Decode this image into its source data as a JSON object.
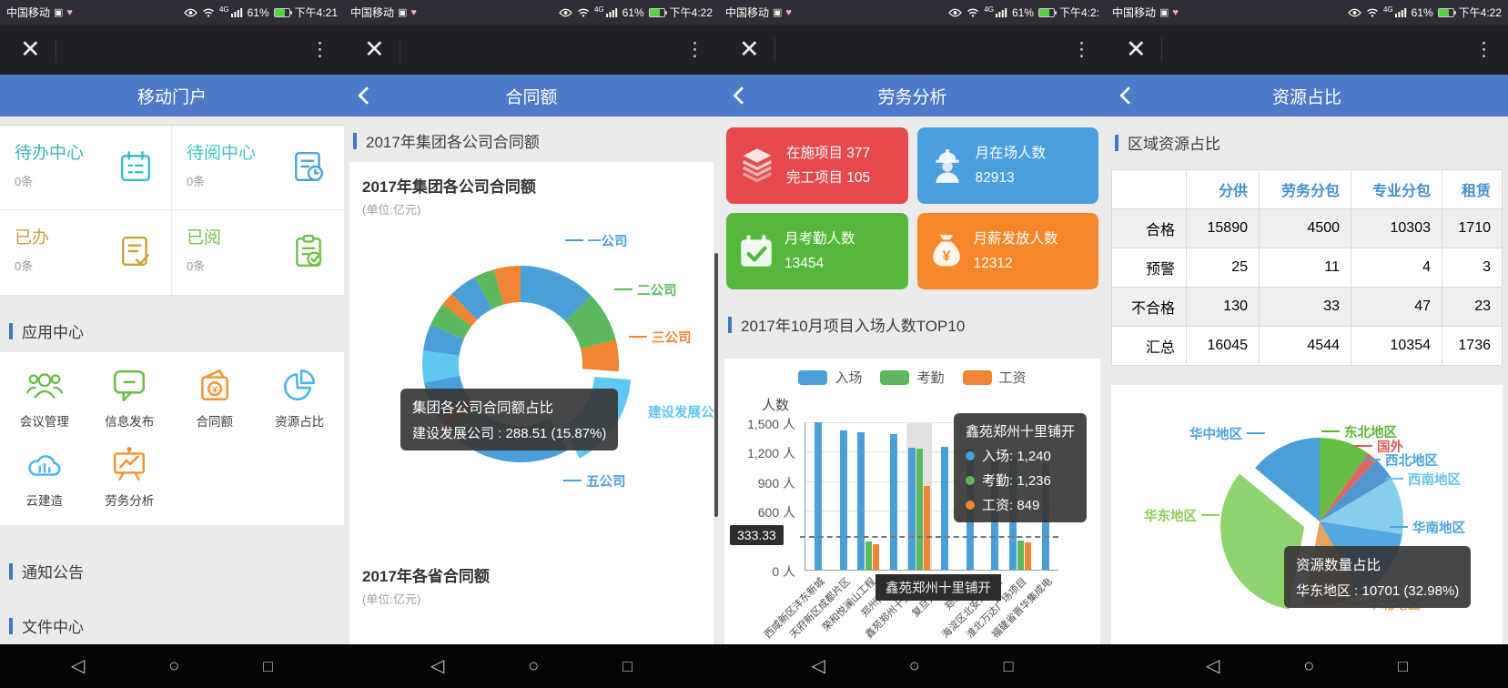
{
  "screen1": {
    "status": {
      "carrier": "中国移动",
      "signal": "4G",
      "battery": "61%",
      "time": "下午4:21"
    },
    "nav_title": "移动门户",
    "todo": [
      {
        "label": "待办中心",
        "count": "0条"
      },
      {
        "label": "待阅中心",
        "count": "0条"
      },
      {
        "label": "已办",
        "count": "0条"
      },
      {
        "label": "已阅",
        "count": "0条"
      }
    ],
    "app_section": "应用中心",
    "apps": [
      {
        "label": "会议管理"
      },
      {
        "label": "信息发布"
      },
      {
        "label": "合同额"
      },
      {
        "label": "资源占比"
      },
      {
        "label": "云建造"
      },
      {
        "label": "劳务分析"
      }
    ],
    "section_notice": "通知公告",
    "section_file": "文件中心"
  },
  "screen2": {
    "status": {
      "carrier": "中国移动",
      "signal": "4G",
      "battery": "61%",
      "time": "下午4:22"
    },
    "nav_title": "合同额",
    "section": "2017年集团各公司合同额",
    "bottom_title": "2017年各省合同额",
    "bottom_unit": "(单位:亿元)"
  },
  "screen3": {
    "status": {
      "carrier": "中国移动",
      "signal": "4G",
      "battery": "61%",
      "time": "下午4:2:"
    },
    "nav_title": "劳务分析",
    "cards": [
      {
        "line1": "在施项目 377",
        "line2": "完工项目 105",
        "color": "#e5494d"
      },
      {
        "line1": "月在场人数",
        "line2": "82913",
        "color": "#4aa0dc"
      },
      {
        "line1": "月考勤人数",
        "line2": "13454",
        "color": "#55b83b"
      },
      {
        "line1": "月薪发放人数",
        "line2": "12312",
        "color": "#f6882b"
      }
    ],
    "section": "2017年10月项目入场人数TOP10"
  },
  "screen4": {
    "status": {
      "carrier": "中国移动",
      "signal": "4G",
      "battery": "61%",
      "time": "下午4:22"
    },
    "nav_title": "资源占比",
    "section": "区域资源占比",
    "table": {
      "headers": [
        "",
        "分供",
        "劳务分包",
        "专业分包",
        "租赁"
      ],
      "rows": [
        {
          "label": "合格",
          "cells": [
            "15890",
            "4500",
            "10303",
            "1710"
          ]
        },
        {
          "label": "预警",
          "cells": [
            "25",
            "11",
            "4",
            "3"
          ]
        },
        {
          "label": "不合格",
          "cells": [
            "130",
            "33",
            "47",
            "23"
          ]
        },
        {
          "label": "汇总",
          "cells": [
            "16045",
            "4544",
            "10354",
            "1736"
          ]
        }
      ]
    }
  },
  "chart_data": [
    {
      "type": "pie",
      "subtype": "donut",
      "title": "2017年集团各公司合同额",
      "unit": "(单位:亿元)",
      "visible_labels": [
        "一公司",
        "二公司",
        "三公司",
        "建设发展公",
        "五公司"
      ],
      "tooltip": {
        "line1": "集团各公司合同额占比",
        "line2": "建设发展公司 : 288.51 (15.87%)"
      },
      "slices": [
        {
          "name": "一公司",
          "value": 232,
          "color": "#4a9fd8",
          "estimated": true
        },
        {
          "name": "二公司",
          "value": 150,
          "color": "#5cb85c",
          "estimated": true
        },
        {
          "name": "三公司",
          "value": 95,
          "color": "#ef8432",
          "estimated": true
        },
        {
          "name": "建设发展公司",
          "value": 288.51,
          "pct": "15.87%",
          "color": "#5ec7f2",
          "explode": true
        },
        {
          "name": "五公司",
          "value": 330,
          "color": "#4a9fd8",
          "estimated": true
        },
        {
          "value": 55,
          "color": "#5cb85c",
          "estimated": true
        },
        {
          "value": 48,
          "color": "#ef8432",
          "estimated": true
        },
        {
          "value": 110,
          "color": "#4a9fd8",
          "estimated": true
        },
        {
          "value": 95,
          "color": "#5ec7f2",
          "estimated": true
        },
        {
          "value": 80,
          "color": "#4a9fd8",
          "estimated": true
        },
        {
          "value": 70,
          "color": "#5cb85c",
          "estimated": true
        },
        {
          "value": 40,
          "color": "#ef8432",
          "estimated": true
        },
        {
          "value": 85,
          "color": "#4a9fd8",
          "estimated": true
        },
        {
          "value": 60,
          "color": "#5cb85c",
          "estimated": true
        },
        {
          "value": 80,
          "color": "#ef8432",
          "estimated": true
        }
      ]
    },
    {
      "type": "bar",
      "title": "2017年10月项目入场人数TOP10",
      "ylabel": "人数",
      "yticks": [
        "1,500 人",
        "1,200 人",
        "900 人",
        "600 人",
        "0 人"
      ],
      "ymax": 1500,
      "ref_line": 333.33,
      "ref_label": "333.33",
      "highlight_index": 4,
      "categories": [
        "西咸新区沣东新城",
        "天府新区成都片区",
        "荣和悦澜山工程",
        "郑州南岗刘",
        "鑫苑郑州十里铺开",
        "复旦大学附",
        "郑东新区",
        "海淀区北安河东区",
        "淮北万达广场项目",
        "福建省晋华集成电"
      ],
      "series": [
        {
          "name": "入场",
          "color": "#4a9fd8",
          "values": [
            1500,
            1420,
            1400,
            1380,
            1240,
            1250,
            1230,
            1180,
            1150,
            1080
          ]
        },
        {
          "name": "考勤",
          "color": "#5cb85c",
          "values": [
            null,
            null,
            290,
            null,
            1236,
            null,
            null,
            null,
            300,
            null
          ]
        },
        {
          "name": "工资",
          "color": "#ee8633",
          "values": [
            null,
            null,
            260,
            null,
            849,
            null,
            null,
            null,
            280,
            null
          ]
        }
      ],
      "tooltip": {
        "title": "鑫苑郑州十里铺开",
        "rows": [
          {
            "text": "入场: 1,240",
            "color": "#4a9fd8"
          },
          {
            "text": "考勤: 1,236",
            "color": "#5cb85c"
          },
          {
            "text": "工资: 849",
            "color": "#ee8633"
          }
        ]
      },
      "x_tooltip": "鑫苑郑州十里铺开"
    },
    {
      "type": "pie",
      "title": "资源数量占比",
      "tooltip": {
        "line1": "资源数量占比",
        "line2": "华东地区 : 10701 (32.98%)"
      },
      "slices": [
        {
          "name": "东北地区",
          "value": 3200,
          "color": "#68bd45",
          "label_color": "#5cb531",
          "estimated": true
        },
        {
          "name": "国外",
          "value": 650,
          "color": "#e06666",
          "label_color": "#e05c5c",
          "estimated": true
        },
        {
          "name": "西北地区",
          "value": 1460,
          "color": "#4f97d0",
          "label_color": "#4aa3dd",
          "estimated": true
        },
        {
          "name": "西南地区",
          "value": 3570,
          "color": "#87ceec",
          "label_color": "#66c3ea",
          "estimated": true
        },
        {
          "name": "华南地区",
          "value": 4700,
          "color": "#54a8e0",
          "label_color": "#4aa3dd",
          "estimated": true
        },
        {
          "name": "华北地区",
          "value": 3570,
          "color": "#e8a15d",
          "label_color": "#eda155",
          "estimated": true
        },
        {
          "name": "华东地区",
          "value": 10701,
          "pct": "32.98%",
          "color": "#8ed36e",
          "label_color": "#8ccf56",
          "explode": true
        },
        {
          "name": "华中地区",
          "value": 4540,
          "color": "#4a9fd8",
          "label_color": "#4aa3dd",
          "estimated": true
        }
      ]
    }
  ]
}
